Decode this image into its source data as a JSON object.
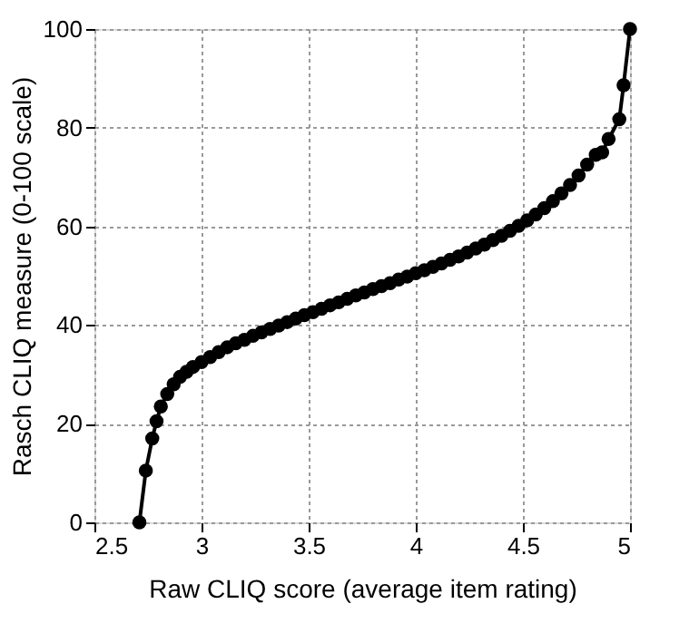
{
  "chart_data": {
    "type": "line",
    "xlabel": "Raw CLIQ score (average item rating)",
    "ylabel": "Rasch CLIQ measure (0-100 scale)",
    "xlim": [
      2.5,
      5
    ],
    "xticks": [
      2.5,
      3,
      3.5,
      4,
      4.5,
      5
    ],
    "ylim": [
      0,
      100
    ],
    "yticks": [
      0,
      20,
      40,
      60,
      80,
      100
    ],
    "grid": true,
    "marker": "circle",
    "line_style": "solid",
    "series": [
      {
        "color": "#000000",
        "x": [
          2.71,
          2.74,
          2.77,
          2.79,
          2.81,
          2.84,
          2.87,
          2.9,
          2.93,
          2.96,
          3.0,
          3.04,
          3.08,
          3.12,
          3.16,
          3.2,
          3.24,
          3.28,
          3.32,
          3.36,
          3.4,
          3.44,
          3.48,
          3.52,
          3.56,
          3.6,
          3.64,
          3.68,
          3.72,
          3.76,
          3.8,
          3.84,
          3.88,
          3.92,
          3.96,
          4.0,
          4.04,
          4.08,
          4.12,
          4.16,
          4.2,
          4.24,
          4.28,
          4.32,
          4.36,
          4.4,
          4.44,
          4.48,
          4.52,
          4.56,
          4.6,
          4.64,
          4.68,
          4.72,
          4.76,
          4.8,
          4.84,
          4.87,
          4.9,
          4.95,
          4.97,
          5.0
        ],
        "values": [
          0,
          10.5,
          17,
          20.5,
          23.5,
          26,
          28,
          29.5,
          30.5,
          31.5,
          32.5,
          33.5,
          34.5,
          35.5,
          36.3,
          37,
          37.8,
          38.5,
          39.2,
          39.9,
          40.6,
          41.3,
          42,
          42.6,
          43.3,
          44,
          44.6,
          45.3,
          46,
          46.6,
          47.3,
          47.9,
          48.5,
          49.2,
          49.8,
          50.5,
          51.1,
          51.8,
          52.5,
          53.2,
          53.9,
          54.7,
          55.5,
          56.3,
          57.2,
          58.1,
          59.1,
          60.1,
          61.2,
          62.4,
          63.7,
          65.1,
          66.7,
          68.4,
          70.3,
          72.5,
          74.5,
          75,
          77.7,
          81.7,
          88.6,
          100
        ]
      }
    ]
  }
}
